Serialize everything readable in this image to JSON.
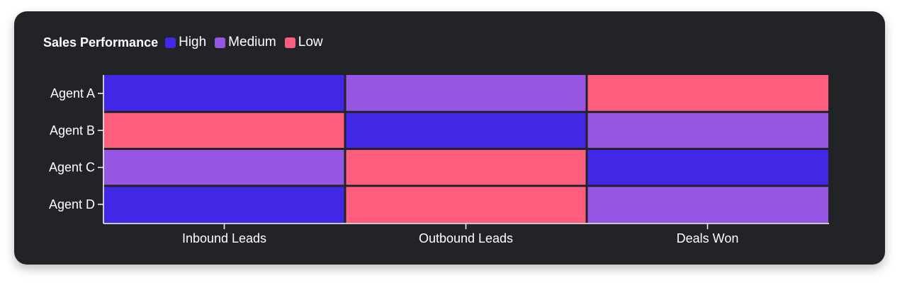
{
  "chart_data": {
    "type": "heatmap",
    "title": "Sales Performance",
    "rows": [
      "Agent A",
      "Agent B",
      "Agent C",
      "Agent D"
    ],
    "columns": [
      "Inbound Leads",
      "Outbound Leads",
      "Deals Won"
    ],
    "levels": [
      {
        "name": "High",
        "color": "#4228e6"
      },
      {
        "name": "Medium",
        "color": "#9656e3"
      },
      {
        "name": "Low",
        "color": "#ff5d7d"
      }
    ],
    "values": [
      [
        "High",
        "Medium",
        "Low"
      ],
      [
        "Low",
        "High",
        "Medium"
      ],
      [
        "Medium",
        "Low",
        "High"
      ],
      [
        "High",
        "Low",
        "Medium"
      ]
    ],
    "legend_position": "top-left",
    "grid": false
  }
}
